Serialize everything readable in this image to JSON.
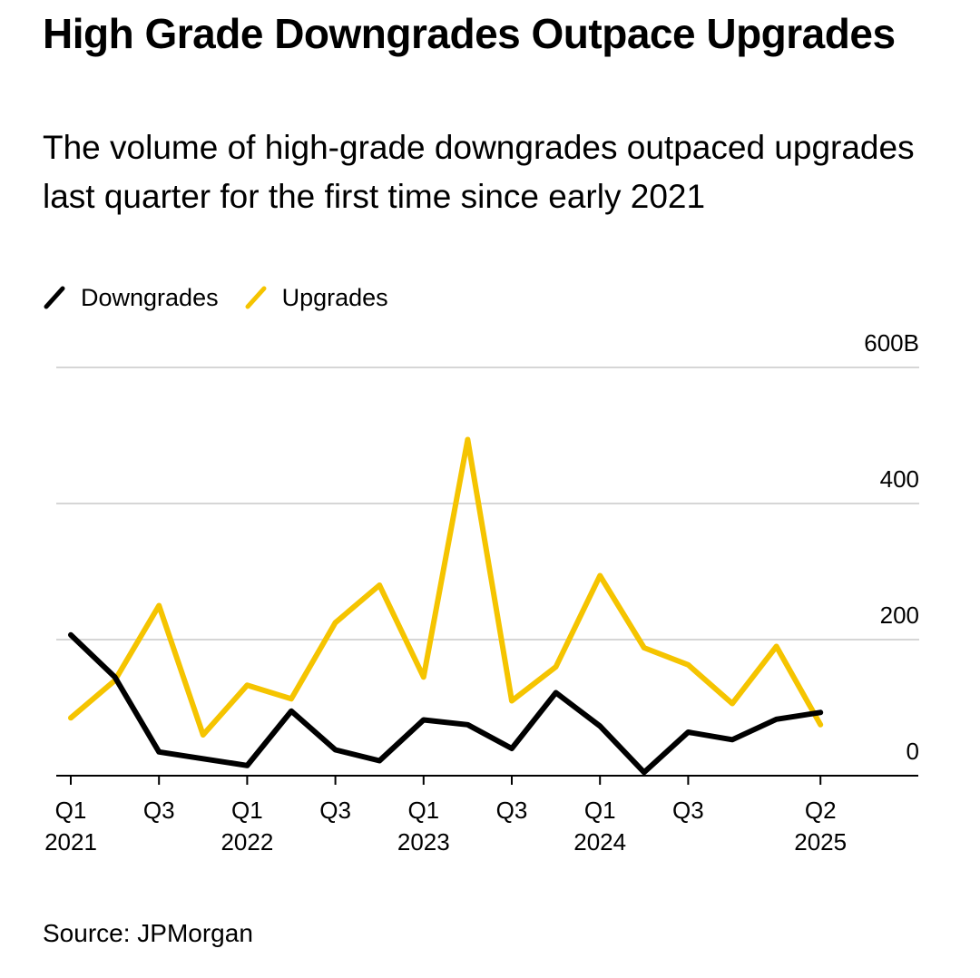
{
  "title": "High Grade Downgrades Outpace Upgrades",
  "subtitle": "The volume of high-grade downgrades outpaced upgrades last quarter for the first time since early 2021",
  "source": "Source: JPMorgan",
  "colors": {
    "downgrades": "#000000",
    "upgrades": "#F5C400",
    "grid": "#d6d6d6"
  },
  "chart_data": {
    "type": "line",
    "x": [
      "Q1 2021",
      "Q2 2021",
      "Q3 2021",
      "Q4 2021",
      "Q1 2022",
      "Q2 2022",
      "Q3 2022",
      "Q4 2022",
      "Q1 2023",
      "Q2 2023",
      "Q3 2023",
      "Q4 2023",
      "Q1 2024",
      "Q2 2024",
      "Q3 2024",
      "Q4 2024",
      "Q1 2025",
      "Q2 2025"
    ],
    "series": [
      {
        "name": "Downgrades",
        "color": "#000000",
        "values": [
          207,
          145,
          35,
          25,
          15,
          95,
          38,
          22,
          82,
          75,
          40,
          122,
          73,
          5,
          64,
          53,
          83,
          93
        ]
      },
      {
        "name": "Upgrades",
        "color": "#F5C400",
        "values": [
          85,
          140,
          250,
          60,
          133,
          113,
          225,
          280,
          145,
          494,
          110,
          160,
          294,
          188,
          163,
          106,
          190,
          75
        ]
      }
    ],
    "ylim": [
      0,
      600
    ],
    "yticks": [
      "0",
      "200",
      "400",
      "600B"
    ],
    "ytick_values": [
      0,
      200,
      400,
      600
    ],
    "xtick_labels": [
      {
        "index": 0,
        "quarter": "Q1",
        "year": "2021"
      },
      {
        "index": 2,
        "quarter": "Q3",
        "year": ""
      },
      {
        "index": 4,
        "quarter": "Q1",
        "year": "2022"
      },
      {
        "index": 6,
        "quarter": "Q3",
        "year": ""
      },
      {
        "index": 8,
        "quarter": "Q1",
        "year": "2023"
      },
      {
        "index": 10,
        "quarter": "Q3",
        "year": ""
      },
      {
        "index": 12,
        "quarter": "Q1",
        "year": "2024"
      },
      {
        "index": 14,
        "quarter": "Q3",
        "year": ""
      },
      {
        "index": 17,
        "quarter": "Q2",
        "year": "2025"
      }
    ],
    "grid": true,
    "legend": "top-left"
  }
}
